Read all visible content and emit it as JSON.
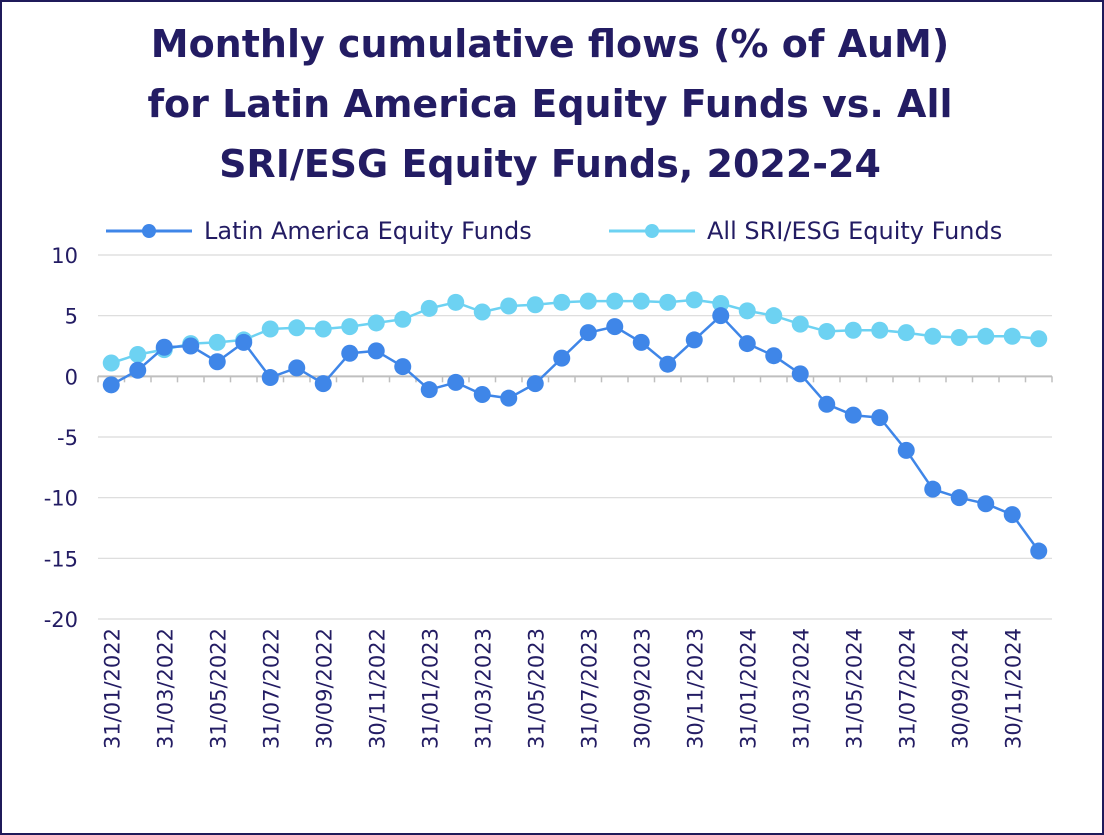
{
  "chart_data": {
    "type": "line",
    "title_lines": [
      "Monthly cumulative flows (% of AuM)",
      "for Latin America Equity Funds vs. All",
      "SRI/ESG Equity Funds, 2022-24"
    ],
    "xlabel": "",
    "ylabel": "",
    "ylim": [
      -20,
      10
    ],
    "yticks": [
      10,
      5,
      0,
      -5,
      -10,
      -15,
      -20
    ],
    "ytick_labels": [
      "10",
      "5",
      "0",
      "-5",
      "-10",
      "-15",
      "-20"
    ],
    "grid": true,
    "legend_position": "top",
    "x": [
      "31/01/2022",
      "28/02/2022",
      "31/03/2022",
      "30/04/2022",
      "31/05/2022",
      "30/06/2022",
      "31/07/2022",
      "31/08/2022",
      "30/09/2022",
      "31/10/2022",
      "30/11/2022",
      "31/12/2022",
      "31/01/2023",
      "28/02/2023",
      "31/03/2023",
      "30/04/2023",
      "31/05/2023",
      "30/06/2023",
      "31/07/2023",
      "31/08/2023",
      "30/09/2023",
      "31/10/2023",
      "30/11/2023",
      "31/12/2023",
      "31/01/2024",
      "29/02/2024",
      "31/03/2024",
      "30/04/2024",
      "31/05/2024",
      "30/06/2024",
      "31/07/2024",
      "31/08/2024",
      "30/09/2024",
      "31/10/2024",
      "30/11/2024",
      "31/12/2024"
    ],
    "x_tick_labels": [
      "31/01/2022",
      "31/03/2022",
      "31/05/2022",
      "31/07/2022",
      "30/09/2022",
      "30/11/2022",
      "31/01/2023",
      "31/03/2023",
      "31/05/2023",
      "31/07/2023",
      "30/09/2023",
      "30/11/2023",
      "31/01/2024",
      "31/03/2024",
      "31/05/2024",
      "31/07/2024",
      "30/09/2024",
      "30/11/2024"
    ],
    "series": [
      {
        "name": "Latin America Equity Funds",
        "color": "#3f86e8",
        "values": [
          -0.7,
          0.5,
          2.4,
          2.5,
          1.2,
          2.8,
          -0.1,
          0.7,
          -0.6,
          1.9,
          2.1,
          0.8,
          -1.1,
          -0.5,
          -1.5,
          -1.8,
          -0.6,
          1.5,
          3.6,
          4.1,
          2.8,
          1.0,
          3.0,
          5.0,
          2.7,
          1.7,
          0.2,
          -2.3,
          -3.2,
          -3.4,
          -6.1,
          -9.3,
          -10.0,
          -10.5,
          -11.4,
          -14.4
        ]
      },
      {
        "name": "All SRI/ESG Equity Funds",
        "color": "#6dd2f2",
        "values": [
          1.1,
          1.8,
          2.2,
          2.7,
          2.8,
          3.0,
          3.9,
          4.0,
          3.9,
          4.1,
          4.4,
          4.7,
          5.6,
          6.1,
          5.3,
          5.8,
          5.9,
          6.1,
          6.2,
          6.2,
          6.2,
          6.1,
          6.3,
          6.0,
          5.4,
          5.0,
          4.3,
          3.7,
          3.8,
          3.8,
          3.6,
          3.3,
          3.2,
          3.3,
          3.3,
          3.1
        ]
      }
    ]
  }
}
